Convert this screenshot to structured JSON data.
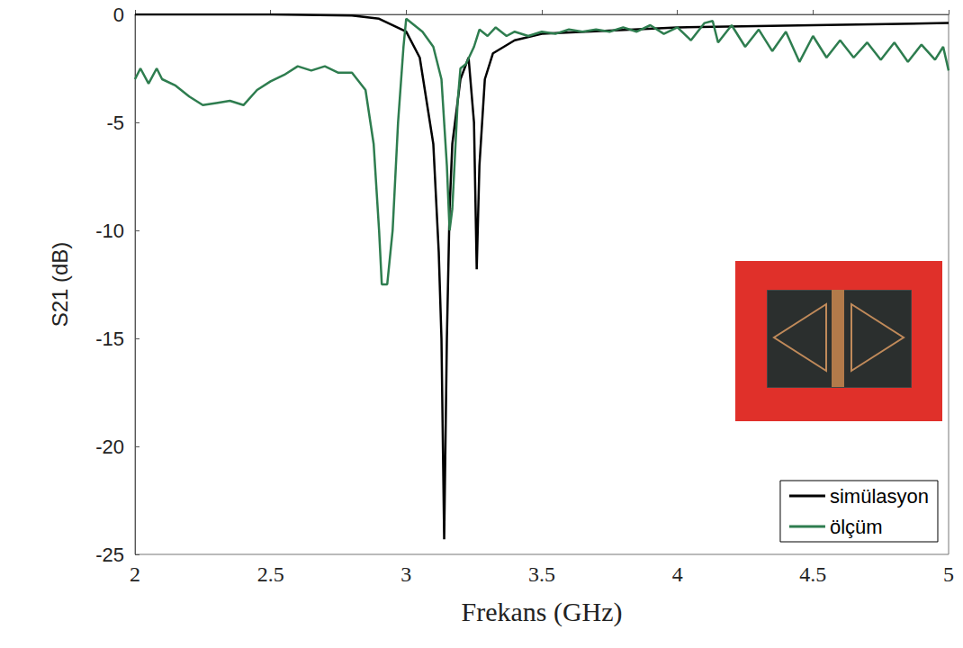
{
  "chart_data": {
    "type": "line",
    "x_label": "Frekans (GHz)",
    "y_label": "S21 (dB)",
    "xlim": [
      2,
      5
    ],
    "xticks": [
      2,
      2.5,
      3,
      3.5,
      4,
      4.5,
      5
    ],
    "ylim": [
      -25,
      0
    ],
    "yticks": [
      -25,
      -20,
      -15,
      -10,
      -5,
      0
    ],
    "grid": false,
    "legend": "lower right",
    "series": [
      {
        "name": "simülasyon",
        "color": "#000000",
        "x": [
          2.0,
          2.5,
          2.8,
          2.9,
          3.0,
          3.05,
          3.1,
          3.12,
          3.13,
          3.14,
          3.15,
          3.16,
          3.17,
          3.2,
          3.23,
          3.25,
          3.26,
          3.27,
          3.29,
          3.32,
          3.4,
          3.5,
          4.0,
          4.5,
          5.0
        ],
        "values": [
          0,
          0,
          -0.05,
          -0.2,
          -0.8,
          -2,
          -6,
          -11,
          -15,
          -24.3,
          -15,
          -9,
          -6,
          -3,
          -2,
          -5,
          -11.8,
          -7,
          -3,
          -1.8,
          -1.2,
          -0.9,
          -0.6,
          -0.5,
          -0.4
        ]
      },
      {
        "name": "ölçüm",
        "color": "#2e7d4f",
        "x": [
          2.0,
          2.02,
          2.05,
          2.08,
          2.1,
          2.15,
          2.2,
          2.25,
          2.3,
          2.35,
          2.4,
          2.45,
          2.5,
          2.55,
          2.6,
          2.65,
          2.7,
          2.75,
          2.8,
          2.85,
          2.88,
          2.9,
          2.91,
          2.93,
          2.95,
          2.97,
          2.99,
          3.0,
          3.03,
          3.06,
          3.1,
          3.13,
          3.15,
          3.16,
          3.17,
          3.19,
          3.2,
          3.22,
          3.25,
          3.27,
          3.3,
          3.33,
          3.37,
          3.4,
          3.45,
          3.5,
          3.55,
          3.6,
          3.65,
          3.7,
          3.75,
          3.8,
          3.85,
          3.9,
          3.95,
          4.0,
          4.05,
          4.1,
          4.13,
          4.15,
          4.2,
          4.25,
          4.3,
          4.35,
          4.4,
          4.45,
          4.5,
          4.55,
          4.6,
          4.65,
          4.7,
          4.75,
          4.8,
          4.85,
          4.9,
          4.95,
          4.98,
          5.0
        ],
        "values": [
          -3,
          -2.5,
          -3.2,
          -2.5,
          -3,
          -3.3,
          -3.8,
          -4.2,
          -4.1,
          -4,
          -4.2,
          -3.5,
          -3.1,
          -2.8,
          -2.4,
          -2.6,
          -2.4,
          -2.7,
          -2.7,
          -3.5,
          -6,
          -10,
          -12.5,
          -12.5,
          -10,
          -5,
          -1.5,
          -0.2,
          -0.5,
          -0.8,
          -1.5,
          -3,
          -7,
          -10,
          -9,
          -4,
          -2.5,
          -2.3,
          -1.5,
          -0.7,
          -1,
          -0.6,
          -1,
          -0.8,
          -1,
          -0.8,
          -0.9,
          -0.7,
          -0.8,
          -0.7,
          -0.8,
          -0.6,
          -0.8,
          -0.5,
          -0.9,
          -0.6,
          -1.2,
          -0.4,
          -0.3,
          -1.3,
          -0.5,
          -1.5,
          -0.7,
          -1.7,
          -0.8,
          -2.2,
          -1,
          -2,
          -1.2,
          -2,
          -1.3,
          -2.1,
          -1.3,
          -2.2,
          -1.4,
          -2.1,
          -1.5,
          -2.6
        ]
      }
    ]
  }
}
